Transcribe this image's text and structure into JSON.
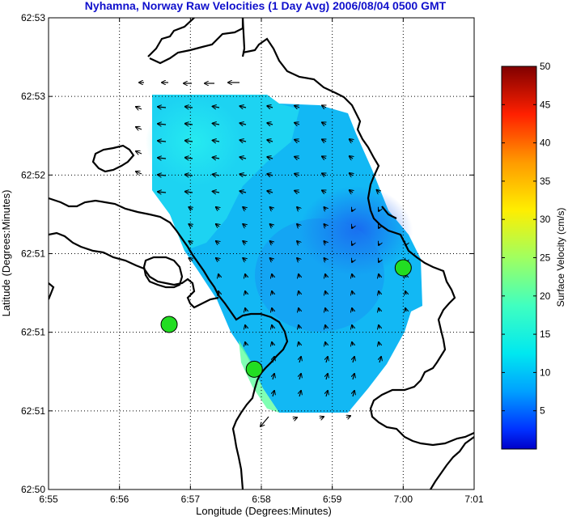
{
  "chart_data": {
    "type": "heatmap",
    "title": "Nyhamna, Norway Raw Velocities (1 Day Avg) 2006/08/04 0500 GMT",
    "title_color": "#1010cc",
    "xlabel": "Longitude (Degrees:Minutes)",
    "ylabel": "Latitude (Degrees:Minutes)",
    "x_tick_labels": [
      "6:55",
      "6:56",
      "6:57",
      "6:58",
      "6:59",
      "7:00",
      "7:01"
    ],
    "y_tick_labels": [
      "62:50",
      "62:51",
      "62:51",
      "62:51",
      "62:52",
      "62:53",
      "62:53"
    ],
    "grid": true,
    "grid_style": "dotted",
    "colorbar": {
      "label": "Surface Velocity (cm/s)",
      "ticks": [
        5,
        10,
        15,
        20,
        25,
        30,
        35,
        40,
        45,
        50
      ],
      "range": [
        0,
        50
      ],
      "colormap": "jet"
    },
    "stations": [
      {
        "lon": "6:56.7",
        "lat_frac": 0.35,
        "color": "#22dd22"
      },
      {
        "lon": "6:57.9",
        "lat_frac": 0.255,
        "color": "#22dd22"
      },
      {
        "lon": "7:00.0",
        "lat_frac": 0.47,
        "color": "#22dd22"
      }
    ],
    "speed_field_summary": {
      "min_cm_s": 2,
      "max_cm_s": 16,
      "typical_cm_s": 8
    }
  }
}
